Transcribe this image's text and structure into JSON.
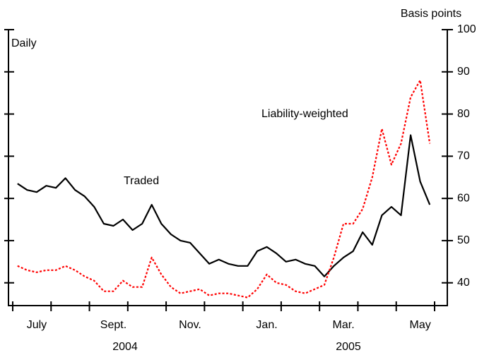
{
  "chart_data": {
    "type": "line",
    "y_unit_label": "Basis points",
    "frequency_label": "Daily",
    "categories": [
      null,
      null,
      "July",
      null,
      null,
      null,
      null,
      null,
      null,
      null,
      "Sept.",
      null,
      null,
      null,
      null,
      null,
      null,
      null,
      "Nov.",
      null,
      null,
      null,
      null,
      null,
      null,
      null,
      "Jan.",
      null,
      null,
      null,
      null,
      null,
      null,
      null,
      "Mar.",
      null,
      null,
      null,
      null,
      null,
      null,
      null,
      "May",
      null
    ],
    "year_labels": [
      "2004",
      "2005"
    ],
    "series": [
      {
        "name": "Traded",
        "color": "#000000",
        "style": "solid",
        "values": [
          63.5,
          62,
          61.5,
          63,
          62.5,
          64.8,
          62,
          60.5,
          58,
          54,
          53.5,
          55,
          52.5,
          54,
          58.5,
          54,
          51.5,
          50,
          49.5,
          47,
          44.5,
          45.5,
          44.5,
          44,
          44,
          47.5,
          48.5,
          47,
          45,
          45.5,
          44.5,
          44,
          41.5,
          44,
          46,
          47.5,
          52,
          49,
          56,
          58,
          56,
          75,
          64,
          58.5
        ]
      },
      {
        "name": "Liability-weighted",
        "color": "#ff0000",
        "style": "dotted",
        "values": [
          44,
          43,
          42.5,
          43,
          43,
          44,
          43,
          41.5,
          40.5,
          38,
          38,
          40.5,
          39,
          39,
          46,
          42,
          39,
          37.5,
          38,
          38.5,
          37,
          37.5,
          37.5,
          37,
          36.5,
          38.5,
          42,
          40,
          39.5,
          38,
          37.5,
          38.5,
          39.5,
          46,
          54,
          54,
          57.5,
          65,
          76.5,
          68,
          73,
          84,
          88,
          73
        ]
      }
    ],
    "ylim": [
      34.6,
      100
    ],
    "yticks": [
      40,
      50,
      60,
      70,
      80,
      90,
      100
    ]
  }
}
